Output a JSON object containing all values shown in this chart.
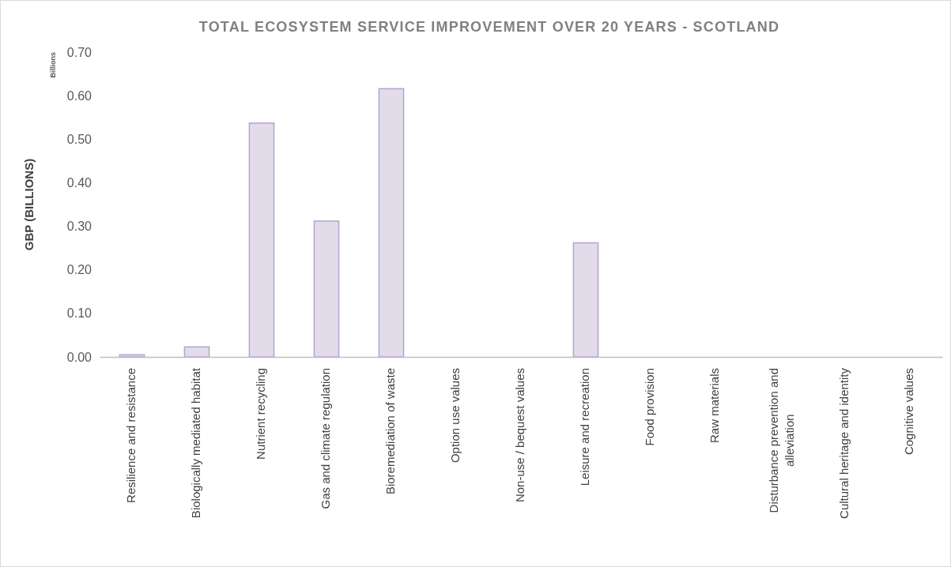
{
  "chart_data": {
    "type": "bar",
    "title": "TOTAL ECOSYSTEM SERVICE IMPROVEMENT OVER 20 YEARS - SCOTLAND",
    "ylabel": "GBP (BILLIONS)",
    "annotations": [
      "Billions"
    ],
    "categories": [
      "Resilience and resistance",
      "Biologically mediated habitat",
      "Nutrient recycling",
      "Gas and climate regulation",
      "Bioremediation of waste",
      "Option use values",
      "Non-use / bequest values",
      "Leisure and recreation",
      "Food provision",
      "Raw materials",
      "Disturbance prevention and alleviation",
      "Cultural heritage and identity",
      "Cognitive values"
    ],
    "values": [
      0.005,
      0.023,
      0.537,
      0.312,
      0.616,
      0,
      0,
      0.262,
      0,
      0,
      0,
      0,
      0
    ],
    "color": "#e2dcea",
    "ylim": [
      0,
      0.7
    ],
    "yticks": [
      {
        "value": 0,
        "label": "0.00"
      },
      {
        "value": 0.1,
        "label": "0.10"
      },
      {
        "value": 0.2,
        "label": "0.20"
      },
      {
        "value": 0.3,
        "label": "0.30"
      },
      {
        "value": 0.4,
        "label": "0.40"
      },
      {
        "value": 0.5,
        "label": "0.50"
      },
      {
        "value": 0.6,
        "label": "0.60"
      },
      {
        "value": 0.7,
        "label": "0.70"
      }
    ],
    "grid": false
  }
}
